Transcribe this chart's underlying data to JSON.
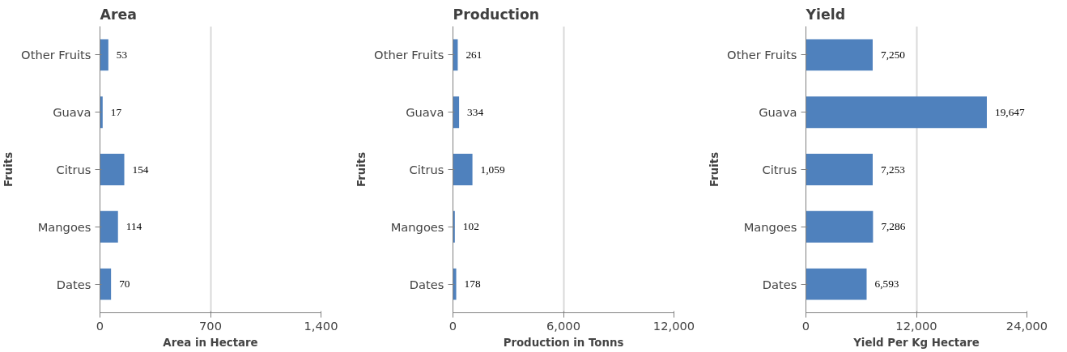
{
  "chart_data": [
    {
      "type": "bar",
      "orientation": "horizontal",
      "title": "Area",
      "ylabel": "Fruits",
      "xlabel": "Area in Hectare",
      "categories": [
        "Other Fruits",
        "Guava",
        "Citrus",
        "Mangoes",
        "Dates"
      ],
      "values": [
        53,
        17,
        154,
        114,
        70
      ],
      "color": "#4f81bd",
      "xlim": [
        0,
        1400
      ],
      "xticks": [
        0,
        700,
        {
          "value": 1400,
          "label": "1,400"
        }
      ],
      "grid": "x",
      "value_labels": [
        "53",
        "17",
        "154",
        "114",
        "70"
      ]
    },
    {
      "type": "bar",
      "orientation": "horizontal",
      "title": "Production",
      "ylabel": "Fruits",
      "xlabel": "Production in Tonns",
      "categories": [
        "Other Fruits",
        "Guava",
        "Citrus",
        "Mangoes",
        "Dates"
      ],
      "values": [
        261,
        334,
        1059,
        102,
        178
      ],
      "color": "#4f81bd",
      "xlim": [
        0,
        12000
      ],
      "xticks": [
        0,
        {
          "value": 6000,
          "label": "6,000"
        },
        {
          "value": 12000,
          "label": "12,000"
        }
      ],
      "grid": "x",
      "value_labels": [
        "261",
        "334",
        "1,059",
        "102",
        "178"
      ]
    },
    {
      "type": "bar",
      "orientation": "horizontal",
      "title": "Yield",
      "ylabel": "Fruits",
      "xlabel": "Yield Per Kg Hectare",
      "categories": [
        "Other Fruits",
        "Guava",
        "Citrus",
        "Mangoes",
        "Dates"
      ],
      "values": [
        7250,
        19647,
        7253,
        7286,
        6593
      ],
      "color": "#4f81bd",
      "xlim": [
        0,
        24000
      ],
      "xticks": [
        0,
        {
          "value": 12000,
          "label": "12,000"
        },
        {
          "value": 24000,
          "label": "24,000"
        }
      ],
      "grid": "x",
      "value_labels": [
        "7,250",
        "19,647",
        "7,253",
        "7,286",
        "6,593"
      ]
    }
  ]
}
